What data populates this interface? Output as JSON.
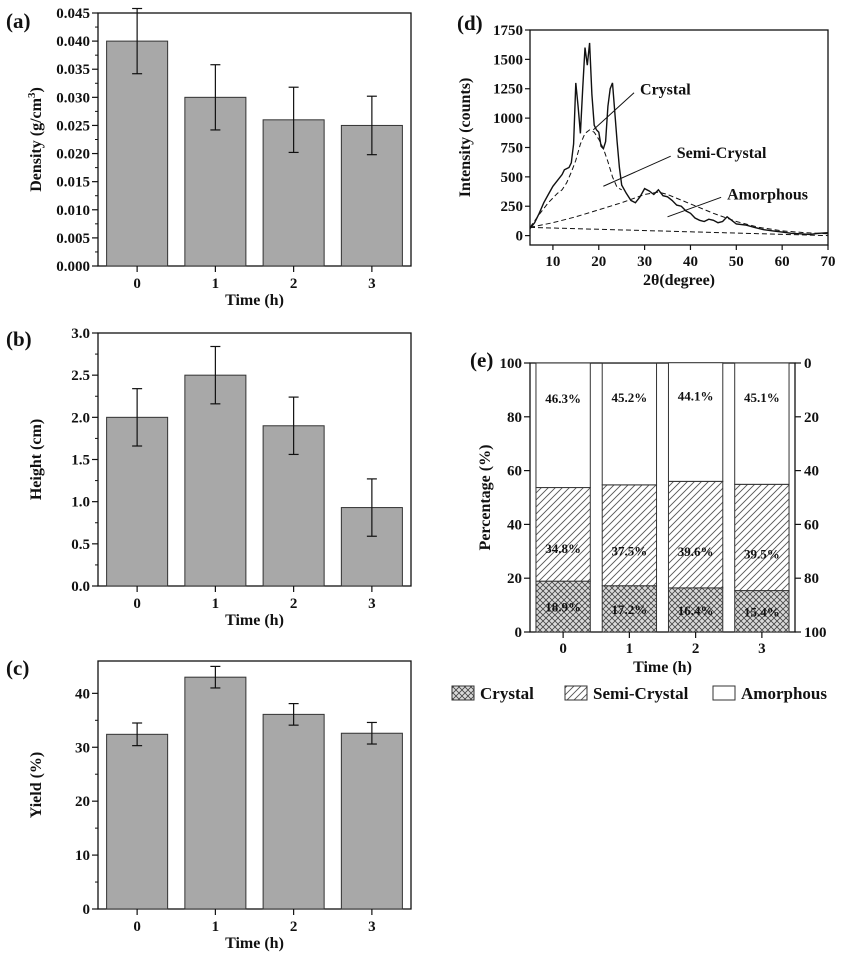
{
  "chart_data": [
    {
      "panel": "(a)",
      "type": "bar",
      "categories": [
        "0",
        "1",
        "2",
        "3"
      ],
      "values": [
        0.04,
        0.03,
        0.026,
        0.025
      ],
      "errors": [
        0.0058,
        0.0058,
        0.0058,
        0.0052
      ],
      "xlabel": "Time (h)",
      "ylabel": "Density (g/cm",
      "ylabel_sup": "3",
      "ylabel_end": ")",
      "ylim": [
        0,
        0.045
      ],
      "yticks": [
        "0.000",
        "0.005",
        "0.010",
        "0.015",
        "0.020",
        "0.025",
        "0.030",
        "0.035",
        "0.040",
        "0.045"
      ],
      "bar_color": "#a8a8a8"
    },
    {
      "panel": "(b)",
      "type": "bar",
      "categories": [
        "0",
        "1",
        "2",
        "3"
      ],
      "values": [
        2.0,
        2.5,
        1.9,
        0.93
      ],
      "errors": [
        0.34,
        0.34,
        0.34,
        0.34
      ],
      "xlabel": "Time (h)",
      "ylabel": "Height (cm)",
      "ylim": [
        0,
        3.0
      ],
      "yticks": [
        "0.0",
        "0.5",
        "1.0",
        "1.5",
        "2.0",
        "2.5",
        "3.0"
      ],
      "bar_color": "#a8a8a8"
    },
    {
      "panel": "(c)",
      "type": "bar",
      "categories": [
        "0",
        "1",
        "2",
        "3"
      ],
      "values": [
        32.4,
        43.0,
        36.1,
        32.6
      ],
      "errors": [
        2.1,
        2.0,
        2.0,
        2.0
      ],
      "xlabel": "Time (h)",
      "ylabel": "Yield (%)",
      "ylim": [
        0,
        46
      ],
      "yticks": [
        "0",
        "10",
        "20",
        "30",
        "40"
      ],
      "bar_color": "#a8a8a8"
    },
    {
      "panel": "(d)",
      "type": "line",
      "xlabel": "2θ(degree)",
      "ylabel": "Intensity (counts)",
      "xlim": [
        5,
        70
      ],
      "ylim": [
        -80,
        1750
      ],
      "xticks": [
        "10",
        "20",
        "30",
        "40",
        "50",
        "60",
        "70"
      ],
      "yticks": [
        "0",
        "250",
        "500",
        "750",
        "1000",
        "1250",
        "1500",
        "1750"
      ],
      "series": [
        {
          "name": "",
          "style": "solid",
          "x": [
            5,
            6,
            7,
            8,
            9,
            10,
            11,
            12,
            12.5,
            13,
            13.5,
            14,
            14.5,
            15,
            15.5,
            16,
            16.5,
            17,
            17.5,
            18,
            18.5,
            19,
            19.5,
            20,
            20.5,
            21,
            21.5,
            22,
            22.5,
            23,
            23.5,
            24,
            24.5,
            25,
            26,
            27,
            28,
            29,
            30,
            31,
            32,
            33,
            34,
            35,
            36,
            37,
            38,
            39,
            40,
            41,
            42,
            43,
            44,
            45,
            46,
            47,
            48,
            49,
            50,
            52,
            54,
            56,
            58,
            60,
            62,
            64,
            66,
            68,
            70
          ],
          "y": [
            60,
            110,
            190,
            280,
            350,
            420,
            470,
            520,
            560,
            570,
            580,
            620,
            780,
            1300,
            1100,
            870,
            1250,
            1600,
            1450,
            1640,
            1200,
            940,
            900,
            880,
            760,
            740,
            800,
            1100,
            1250,
            1300,
            1050,
            800,
            580,
            430,
            360,
            300,
            280,
            330,
            400,
            380,
            350,
            390,
            340,
            330,
            300,
            260,
            250,
            210,
            190,
            150,
            130,
            120,
            140,
            130,
            110,
            120,
            160,
            130,
            100,
            90,
            70,
            50,
            40,
            30,
            20,
            15,
            10,
            20,
            25
          ]
        },
        {
          "name": "",
          "style": "dashed",
          "x": [
            5,
            7,
            9,
            11,
            12,
            13,
            14,
            15,
            16,
            17,
            18,
            19,
            20,
            21,
            22,
            23,
            24,
            25
          ],
          "y": [
            70,
            180,
            280,
            360,
            390,
            450,
            540,
            640,
            780,
            870,
            900,
            880,
            820,
            740,
            630,
            500,
            410,
            390
          ]
        },
        {
          "name": "",
          "style": "dashed",
          "x": [
            5,
            10,
            15,
            20,
            25,
            30,
            33,
            35,
            40,
            45,
            50,
            55,
            60,
            65,
            70
          ],
          "y": [
            70,
            110,
            160,
            220,
            280,
            350,
            370,
            350,
            270,
            190,
            120,
            70,
            40,
            25,
            15
          ]
        },
        {
          "name": "",
          "style": "dashed",
          "x": [
            5,
            70
          ],
          "y": [
            70,
            0
          ]
        }
      ],
      "annotations": [
        {
          "text": "Crystal",
          "x": 18.8,
          "y": 900,
          "tx": 29,
          "ty": 1250
        },
        {
          "text": "Semi-Crystal",
          "x": 21,
          "y": 420,
          "tx": 37,
          "ty": 710
        },
        {
          "text": "Amorphous",
          "x": 35,
          "y": 160,
          "tx": 48,
          "ty": 360
        }
      ]
    },
    {
      "panel": "(e)",
      "type": "bar",
      "stacked": true,
      "categories": [
        "0",
        "1",
        "2",
        "3"
      ],
      "xlabel": "Time (h)",
      "ylabel": "Percentage (%)",
      "ylim": [
        0,
        100
      ],
      "yticks": [
        "0",
        "20",
        "40",
        "60",
        "80",
        "100"
      ],
      "right_yticks": [
        "100",
        "80",
        "60",
        "40",
        "20",
        "0"
      ],
      "series": [
        {
          "name": "Crystal",
          "values": [
            18.9,
            17.2,
            16.4,
            15.4
          ],
          "labels": [
            "18.9%",
            "17.2%",
            "16.4%",
            "15.4%"
          ]
        },
        {
          "name": "Semi-Crystal",
          "values": [
            34.8,
            37.5,
            39.6,
            39.5
          ],
          "labels": [
            "34.8%",
            "37.5%",
            "39.6%",
            "39.5%"
          ]
        },
        {
          "name": "Amorphous",
          "values": [
            46.3,
            45.2,
            44.1,
            45.1
          ],
          "labels": [
            "46.3%",
            "45.2%",
            "44.1%",
            "45.1%"
          ]
        }
      ],
      "legend_position": "bottom"
    }
  ]
}
